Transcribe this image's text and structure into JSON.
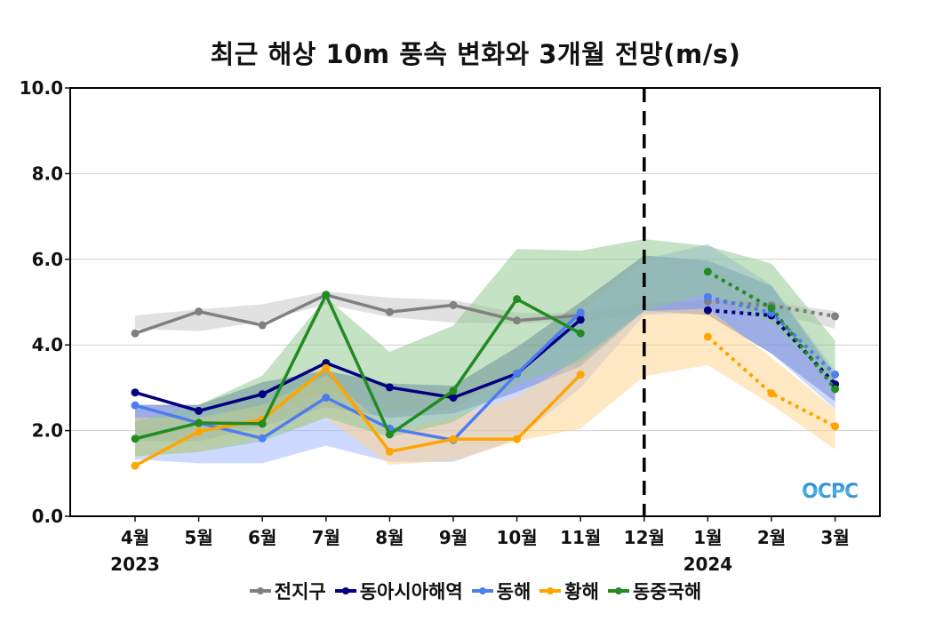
{
  "chart_data": {
    "type": "line",
    "title": "최근 해상 10m 풍속 변화와 3개월 전망(m/s)",
    "xlabel": "",
    "ylabel": "",
    "ylim": [
      0,
      10
    ],
    "yticks": [
      "0.0",
      "2.0",
      "4.0",
      "6.0",
      "8.0",
      "10.0"
    ],
    "ytick_values": [
      0,
      2,
      4,
      6,
      8,
      10
    ],
    "grid": true,
    "categories": [
      "4월",
      "5월",
      "6월",
      "7월",
      "8월",
      "9월",
      "10월",
      "11월",
      "12월",
      "1월",
      "2월",
      "3월"
    ],
    "year_labels": [
      {
        "at": "4월",
        "label": "2023"
      },
      {
        "at": "1월",
        "label": "2024"
      }
    ],
    "divider_at": "12월",
    "observed_range": [
      "4월",
      "11월"
    ],
    "forecast_range": [
      "1월",
      "3월"
    ],
    "legend_position": "bottom",
    "series": [
      {
        "name": "전지구",
        "color": "#808080",
        "values": [
          4.27,
          4.78,
          4.46,
          5.17,
          4.77,
          4.93,
          4.57,
          4.69,
          null,
          5.02,
          4.92,
          4.67
        ],
        "band_low": [
          4.38,
          4.32,
          4.55,
          4.95,
          4.65,
          4.52,
          4.5,
          4.55,
          4.72,
          4.85,
          4.75,
          4.38
        ],
        "band_high": [
          4.69,
          4.83,
          4.95,
          5.25,
          5.1,
          5.05,
          4.75,
          4.75,
          4.98,
          5.05,
          5.0,
          4.79
        ]
      },
      {
        "name": "동아시아해역",
        "color": "#000080",
        "values": [
          2.89,
          2.46,
          2.85,
          3.58,
          3.01,
          2.77,
          3.33,
          4.59,
          null,
          4.81,
          4.69,
          3.08
        ],
        "band_low": [
          1.75,
          1.75,
          2.1,
          2.55,
          2.3,
          2.4,
          2.9,
          3.5,
          4.8,
          4.7,
          3.8,
          2.68
        ],
        "band_high": [
          2.6,
          2.6,
          3.13,
          3.4,
          3.1,
          3.05,
          3.95,
          5.0,
          6.09,
          5.97,
          5.38,
          3.3
        ]
      },
      {
        "name": "동해",
        "color": "#4f7df0",
        "values": [
          2.59,
          2.18,
          1.82,
          2.77,
          2.05,
          1.78,
          3.33,
          4.76,
          null,
          5.12,
          4.75,
          3.31
        ],
        "band_low": [
          1.33,
          1.24,
          1.24,
          1.65,
          1.27,
          1.27,
          1.8,
          3.0,
          4.7,
          4.75,
          3.8,
          2.51
        ],
        "band_high": [
          2.6,
          2.5,
          2.4,
          2.9,
          2.4,
          2.5,
          3.4,
          4.8,
          6.0,
          6.35,
          5.4,
          3.4
        ]
      },
      {
        "name": "황해",
        "color": "#ffa500",
        "values": [
          1.18,
          1.98,
          2.26,
          3.46,
          1.51,
          1.8,
          1.8,
          3.31,
          null,
          4.19,
          2.87,
          2.1
        ],
        "band_low": [
          1.4,
          1.5,
          1.85,
          2.3,
          1.2,
          1.3,
          1.75,
          2.05,
          3.27,
          3.53,
          2.6,
          1.56
        ],
        "band_high": [
          2.3,
          2.3,
          2.6,
          3.3,
          2.0,
          2.3,
          2.8,
          3.7,
          4.79,
          4.85,
          3.7,
          2.5
        ]
      },
      {
        "name": "동중국해",
        "color": "#228b22",
        "values": [
          1.81,
          2.18,
          2.16,
          5.17,
          1.91,
          2.93,
          5.07,
          4.27,
          null,
          5.71,
          4.86,
          2.97
        ],
        "band_low": [
          1.4,
          1.5,
          1.75,
          2.3,
          1.85,
          2.2,
          3.1,
          3.6,
          4.8,
          5.2,
          4.5,
          3.1
        ],
        "band_high": [
          2.2,
          2.6,
          3.28,
          5.1,
          3.84,
          4.45,
          6.24,
          6.2,
          6.47,
          6.31,
          5.9,
          4.1
        ]
      }
    ],
    "band_colors": [
      "#c8c8c8",
      "#3a4f9a",
      "#9db4ff",
      "#ffd48a",
      "#8cc68c"
    ]
  },
  "logo_text": "OCPC"
}
